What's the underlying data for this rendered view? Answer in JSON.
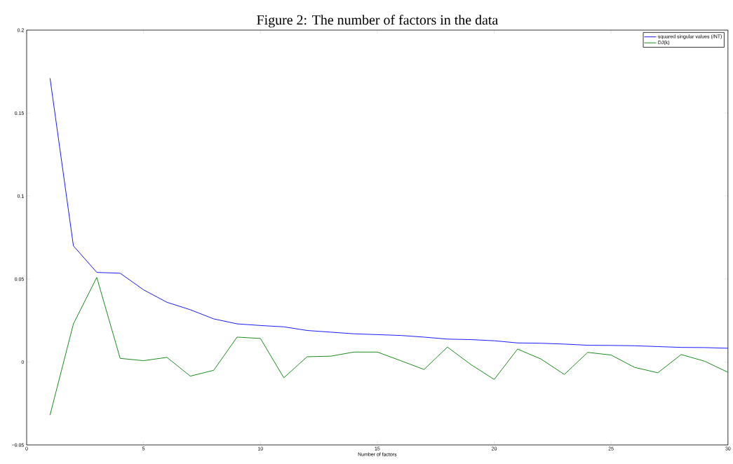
{
  "chart_data": {
    "type": "line",
    "title": "Figure 2: The number of factors in the data",
    "xlabel": "Number of factors",
    "x": [
      1,
      2,
      3,
      4,
      5,
      6,
      7,
      8,
      9,
      10,
      11,
      12,
      13,
      14,
      15,
      16,
      17,
      18,
      19,
      20,
      21,
      22,
      23,
      24,
      25,
      26,
      27,
      28,
      29,
      30
    ],
    "series": [
      {
        "name": "squared singular values (/NT)",
        "color": "#0000ff",
        "values": [
          0.171,
          0.07,
          0.054,
          0.0535,
          0.0435,
          0.036,
          0.0315,
          0.026,
          0.023,
          0.022,
          0.0212,
          0.019,
          0.018,
          0.017,
          0.0165,
          0.016,
          0.015,
          0.0138,
          0.0135,
          0.0128,
          0.0115,
          0.0113,
          0.0108,
          0.0101,
          0.01,
          0.0098,
          0.0093,
          0.0088,
          0.0087,
          0.0083
        ]
      },
      {
        "name": "DJ(k)",
        "color": "#008000",
        "values": [
          -0.032,
          0.023,
          0.051,
          0.0022,
          0.0008,
          0.0028,
          -0.0085,
          -0.005,
          0.015,
          0.0142,
          -0.0095,
          0.0032,
          0.0035,
          0.006,
          0.006,
          0.0008,
          -0.0045,
          0.009,
          -0.0015,
          -0.0105,
          0.0078,
          0.0018,
          -0.0075,
          0.0058,
          0.0042,
          -0.0032,
          -0.0065,
          0.0045,
          0.0005,
          -0.0062
        ]
      }
    ],
    "xlim": [
      0,
      30
    ],
    "ylim": [
      -0.05,
      0.2
    ],
    "xticks": [
      0,
      5,
      10,
      15,
      20,
      25,
      30
    ],
    "yticks": [
      {
        "value": -0.05,
        "label": "−0.05"
      },
      0,
      0.05,
      0.1,
      0.15,
      0.2
    ],
    "legend": "top right",
    "grid": false,
    "marker": "none",
    "line_style": "solid"
  }
}
